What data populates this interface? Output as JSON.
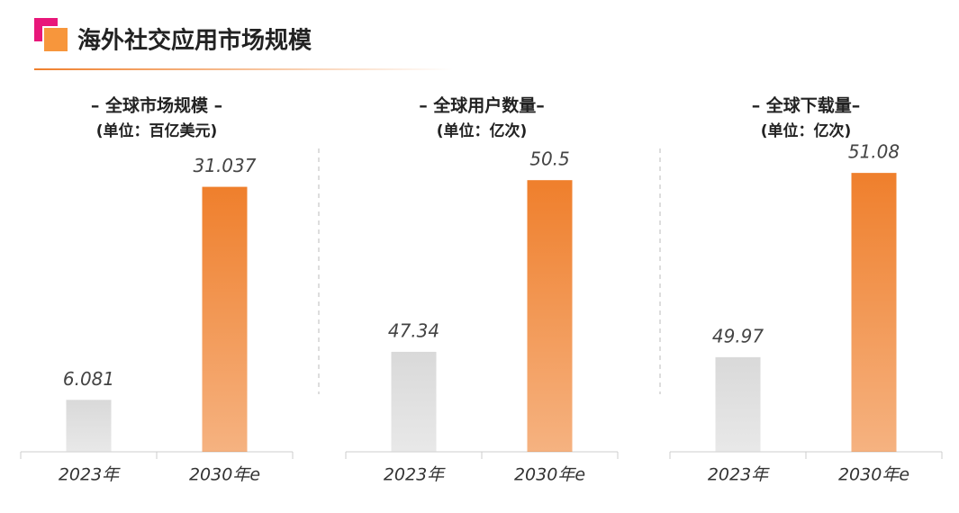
{
  "title": "海外社交应用市场规模",
  "chart_data": [
    {
      "type": "bar",
      "title": "– 全球市场规模 –",
      "subtitle": "(单位：百亿美元)",
      "categories": [
        "2023年",
        "2030年e"
      ],
      "values": [
        6.081,
        31.037
      ],
      "colors": [
        "#d9d9d9",
        "#ef7f2c"
      ],
      "ylim": [
        0,
        35
      ]
    },
    {
      "type": "bar",
      "title": "– 全球用户数量–",
      "subtitle": "(单位：亿次)",
      "categories": [
        "2023年",
        "2030年e"
      ],
      "values": [
        47.34,
        50.5
      ],
      "colors": [
        "#d9d9d9",
        "#ef7f2c"
      ],
      "ylim": [
        45.5,
        51.0
      ]
    },
    {
      "type": "bar",
      "title": "– 全球下载量–",
      "subtitle": "(单位：亿次)",
      "categories": [
        "2023年",
        "2030年e"
      ],
      "values": [
        49.97,
        51.08
      ],
      "colors": [
        "#d9d9d9",
        "#ef7f2c"
      ],
      "ylim": [
        49.4,
        51.2
      ]
    }
  ]
}
